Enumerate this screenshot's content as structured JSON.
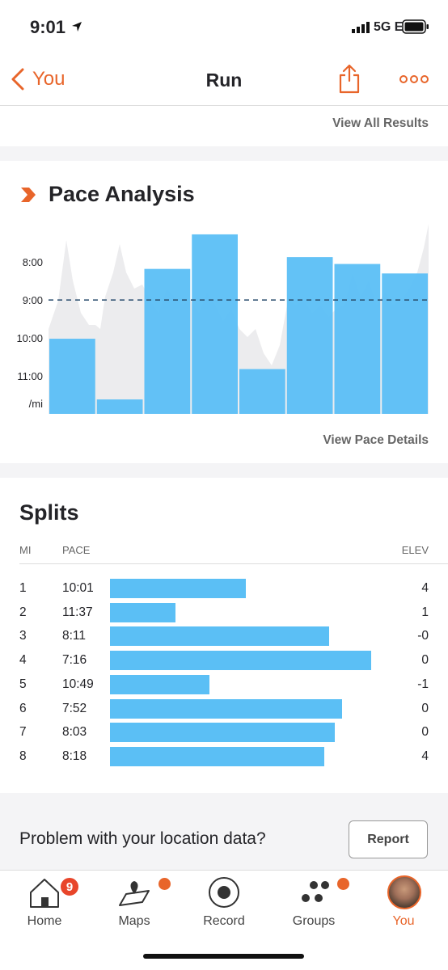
{
  "status": {
    "time": "9:01",
    "network": "5G E"
  },
  "nav": {
    "back_label": "You",
    "title": "Run"
  },
  "results": {
    "link": "View All Results"
  },
  "pace_analysis": {
    "title": "Pace Analysis",
    "link": "View Pace Details",
    "accent_color": "#e8652a",
    "bar_color": "#5bbff5",
    "chart_data": {
      "type": "bar",
      "categories": [
        "1",
        "2",
        "3",
        "4",
        "5",
        "6",
        "7",
        "8"
      ],
      "values": [
        10.02,
        11.62,
        8.18,
        7.27,
        10.82,
        7.87,
        8.05,
        8.3
      ],
      "y_tick_labels": [
        "8:00",
        "9:00",
        "10:00",
        "11:00",
        "/mi"
      ],
      "y_ticks": [
        8,
        9,
        10,
        11
      ],
      "ylim_fast": 7.25,
      "ylim_slow": 12.0,
      "reference_line": 9.0,
      "reference_style": "dashed",
      "background_area": "pace trace (grey)"
    }
  },
  "splits": {
    "title": "Splits",
    "columns": {
      "mi": "MI",
      "pace": "PACE",
      "elev": "ELEV"
    },
    "rows": [
      {
        "mi": "1",
        "pace": "10:01",
        "elev": "4",
        "fraction": 0.52
      },
      {
        "mi": "2",
        "pace": "11:37",
        "elev": "1",
        "fraction": 0.25
      },
      {
        "mi": "3",
        "pace": "8:11",
        "elev": "-0",
        "fraction": 0.84
      },
      {
        "mi": "4",
        "pace": "7:16",
        "elev": "0",
        "fraction": 1.0
      },
      {
        "mi": "5",
        "pace": "10:49",
        "elev": "-1",
        "fraction": 0.38
      },
      {
        "mi": "6",
        "pace": "7:52",
        "elev": "0",
        "fraction": 0.89
      },
      {
        "mi": "7",
        "pace": "8:03",
        "elev": "0",
        "fraction": 0.86
      },
      {
        "mi": "8",
        "pace": "8:18",
        "elev": "4",
        "fraction": 0.82
      }
    ]
  },
  "problem": {
    "text": "Problem with your location data?",
    "button": "Report"
  },
  "tabs": [
    {
      "label": "Home",
      "icon": "home-icon",
      "badge": "9"
    },
    {
      "label": "Maps",
      "icon": "maps-icon",
      "dot": true
    },
    {
      "label": "Record",
      "icon": "record-icon"
    },
    {
      "label": "Groups",
      "icon": "groups-icon",
      "dot": true
    },
    {
      "label": "You",
      "icon": "avatar",
      "active": true
    }
  ]
}
